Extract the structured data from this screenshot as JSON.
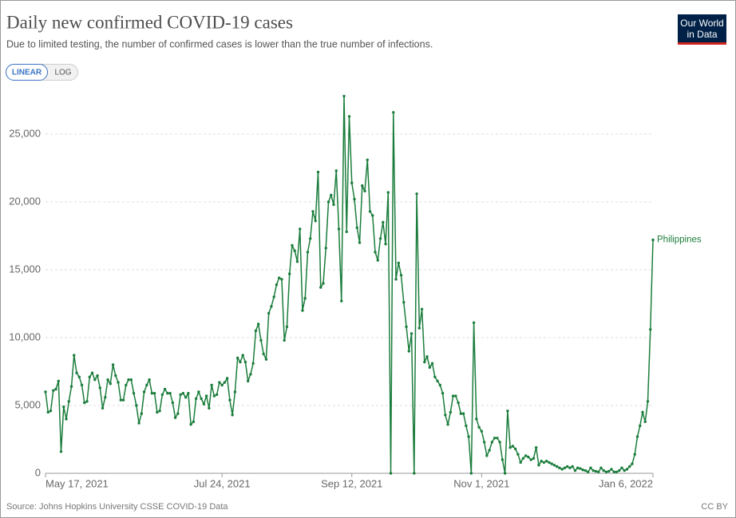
{
  "chart_data": {
    "type": "line",
    "title": "Daily new confirmed COVID-19 cases",
    "subtitle": "Due to limited testing, the number of confirmed cases is lower than the true number of infections.",
    "scale_buttons": [
      "LINEAR",
      "LOG"
    ],
    "logo": [
      "Our World",
      "in Data"
    ],
    "source": "Source: Johns Hopkins University CSSE COVID-19 Data",
    "license": "CC BY",
    "log_scale": false,
    "grid": true,
    "xlim": [
      "2021-05-17",
      "2022-01-06"
    ],
    "xticks": [
      {
        "value": "2021-05-17",
        "label": "May 17, 2021"
      },
      {
        "value": "2021-07-24",
        "label": "Jul 24, 2021"
      },
      {
        "value": "2021-09-12",
        "label": "Sep 12, 2021"
      },
      {
        "value": "2021-11-01",
        "label": "Nov 1, 2021"
      },
      {
        "value": "2022-01-06",
        "label": "Jan 6, 2022"
      }
    ],
    "ylim": [
      0,
      25000
    ],
    "yticks": [
      0,
      {
        "value": 5000,
        "label": "5,000"
      },
      {
        "value": 10000,
        "label": "10,000"
      },
      {
        "value": 15000,
        "label": "15,000"
      },
      {
        "value": 20000,
        "label": "20,000"
      },
      {
        "value": 25000,
        "label": "25,000"
      }
    ],
    "x": [
      "2021-05-17",
      "2021-05-18",
      "2021-05-19",
      "2021-05-20",
      "2021-05-21",
      "2021-05-22",
      "2021-05-23",
      "2021-05-24",
      "2021-05-25",
      "2021-05-26",
      "2021-05-27",
      "2021-05-28",
      "2021-05-29",
      "2021-05-30",
      "2021-05-31",
      "2021-06-01",
      "2021-06-02",
      "2021-06-03",
      "2021-06-04",
      "2021-06-05",
      "2021-06-06",
      "2021-06-07",
      "2021-06-08",
      "2021-06-09",
      "2021-06-10",
      "2021-06-11",
      "2021-06-12",
      "2021-06-13",
      "2021-06-14",
      "2021-06-15",
      "2021-06-16",
      "2021-06-17",
      "2021-06-18",
      "2021-06-19",
      "2021-06-20",
      "2021-06-21",
      "2021-06-22",
      "2021-06-23",
      "2021-06-24",
      "2021-06-25",
      "2021-06-26",
      "2021-06-27",
      "2021-06-28",
      "2021-06-29",
      "2021-06-30",
      "2021-07-01",
      "2021-07-02",
      "2021-07-03",
      "2021-07-04",
      "2021-07-05",
      "2021-07-06",
      "2021-07-07",
      "2021-07-08",
      "2021-07-09",
      "2021-07-10",
      "2021-07-11",
      "2021-07-12",
      "2021-07-13",
      "2021-07-14",
      "2021-07-15",
      "2021-07-16",
      "2021-07-17",
      "2021-07-18",
      "2021-07-19",
      "2021-07-20",
      "2021-07-21",
      "2021-07-22",
      "2021-07-23",
      "2021-07-24",
      "2021-07-25",
      "2021-07-26",
      "2021-07-27",
      "2021-07-28",
      "2021-07-29",
      "2021-07-30",
      "2021-07-31",
      "2021-08-01",
      "2021-08-02",
      "2021-08-03",
      "2021-08-04",
      "2021-08-05",
      "2021-08-06",
      "2021-08-07",
      "2021-08-08",
      "2021-08-09",
      "2021-08-10",
      "2021-08-11",
      "2021-08-12",
      "2021-08-13",
      "2021-08-14",
      "2021-08-15",
      "2021-08-16",
      "2021-08-17",
      "2021-08-18",
      "2021-08-19",
      "2021-08-20",
      "2021-08-21",
      "2021-08-22",
      "2021-08-23",
      "2021-08-24",
      "2021-08-25",
      "2021-08-26",
      "2021-08-27",
      "2021-08-28",
      "2021-08-29",
      "2021-08-30",
      "2021-08-31",
      "2021-09-01",
      "2021-09-02",
      "2021-09-03",
      "2021-09-04",
      "2021-09-05",
      "2021-09-06",
      "2021-09-07",
      "2021-09-08",
      "2021-09-09",
      "2021-09-10",
      "2021-09-11",
      "2021-09-12",
      "2021-09-13",
      "2021-09-14",
      "2021-09-15",
      "2021-09-16",
      "2021-09-17",
      "2021-09-18",
      "2021-09-19",
      "2021-09-20",
      "2021-09-21",
      "2021-09-22",
      "2021-09-23",
      "2021-09-24",
      "2021-09-25",
      "2021-09-26",
      "2021-09-27",
      "2021-09-28",
      "2021-09-29",
      "2021-09-30",
      "2021-10-01",
      "2021-10-02",
      "2021-10-03",
      "2021-10-04",
      "2021-10-05",
      "2021-10-06",
      "2021-10-07",
      "2021-10-08",
      "2021-10-09",
      "2021-10-10",
      "2021-10-11",
      "2021-10-12",
      "2021-10-13",
      "2021-10-14",
      "2021-10-15",
      "2021-10-16",
      "2021-10-17",
      "2021-10-18",
      "2021-10-19",
      "2021-10-20",
      "2021-10-21",
      "2021-10-22",
      "2021-10-23",
      "2021-10-24",
      "2021-10-25",
      "2021-10-26",
      "2021-10-27",
      "2021-10-28",
      "2021-10-29",
      "2021-10-30",
      "2021-10-31",
      "2021-11-01",
      "2021-11-02",
      "2021-11-03",
      "2021-11-04",
      "2021-11-05",
      "2021-11-06",
      "2021-11-07",
      "2021-11-08",
      "2021-11-09",
      "2021-11-10",
      "2021-11-11",
      "2021-11-12",
      "2021-11-13",
      "2021-11-14",
      "2021-11-15",
      "2021-11-16",
      "2021-11-17",
      "2021-11-18",
      "2021-11-19",
      "2021-11-20",
      "2021-11-21",
      "2021-11-22",
      "2021-11-23",
      "2021-11-24",
      "2021-11-25",
      "2021-11-26",
      "2021-11-27",
      "2021-11-28",
      "2021-11-29",
      "2021-11-30",
      "2021-12-01",
      "2021-12-02",
      "2021-12-03",
      "2021-12-04",
      "2021-12-05",
      "2021-12-06",
      "2021-12-07",
      "2021-12-08",
      "2021-12-09",
      "2021-12-10",
      "2021-12-11",
      "2021-12-12",
      "2021-12-13",
      "2021-12-14",
      "2021-12-15",
      "2021-12-16",
      "2021-12-17",
      "2021-12-18",
      "2021-12-19",
      "2021-12-20",
      "2021-12-21",
      "2021-12-22",
      "2021-12-23",
      "2021-12-24",
      "2021-12-25",
      "2021-12-26",
      "2021-12-27",
      "2021-12-28",
      "2021-12-29",
      "2021-12-30",
      "2021-12-31",
      "2022-01-01",
      "2022-01-02",
      "2022-01-03",
      "2022-01-04",
      "2022-01-05",
      "2022-01-06"
    ],
    "series": [
      {
        "name": "Philippines",
        "color": "#1b7d3c",
        "values": [
          6000,
          4500,
          4600,
          6100,
          6200,
          6800,
          1600,
          4900,
          4000,
          5300,
          6400,
          8700,
          7400,
          7100,
          6500,
          5200,
          5300,
          7100,
          7400,
          6900,
          7200,
          6300,
          4800,
          5600,
          6900,
          6600,
          8000,
          7200,
          6700,
          5400,
          5400,
          6500,
          6900,
          6900,
          5900,
          5000,
          3700,
          4400,
          6000,
          6500,
          6900,
          5900,
          5900,
          4500,
          4600,
          5800,
          6200,
          5900,
          5900,
          5200,
          4100,
          4400,
          5800,
          5900,
          5600,
          5900,
          3600,
          3800,
          5500,
          6000,
          5500,
          5100,
          5700,
          4800,
          6500,
          5700,
          5800,
          6700,
          6500,
          6700,
          7000,
          5400,
          4300,
          6000,
          8500,
          8200,
          8700,
          8200,
          6800,
          7300,
          8100,
          10500,
          11000,
          9800,
          8800,
          8400,
          11800,
          12300,
          13000,
          13900,
          14400,
          14300,
          9800,
          10800,
          14700,
          16800,
          16400,
          15600,
          18000,
          12000,
          12900,
          16300,
          17300,
          19300,
          18600,
          22200,
          13700,
          14000,
          16600,
          20000,
          20500,
          19800,
          22300,
          18000,
          12700,
          27800,
          17800,
          26300,
          21400,
          20200,
          18100,
          17000,
          21200,
          20800,
          23100,
          19300,
          19000,
          16300,
          15700,
          17300,
          18500,
          16900,
          20700,
          0,
          26600,
          14300,
          15500,
          14600,
          12600,
          10800,
          9000,
          10300,
          0,
          20600,
          10700,
          12100,
          8200,
          8600,
          7800,
          8100,
          7100,
          6800,
          6500,
          5900,
          4300,
          3600,
          4500,
          5700,
          5700,
          5200,
          4400,
          4400,
          3500,
          2700,
          0,
          11100,
          4000,
          3400,
          3100,
          2300,
          1300,
          1700,
          2300,
          2600,
          2600,
          2300,
          1000,
          0,
          4600,
          1900,
          2000,
          1800,
          1400,
          800,
          1100,
          1300,
          1200,
          1000,
          1100,
          1900,
          600,
          900,
          800,
          900,
          800,
          700,
          600,
          500,
          400,
          300,
          400,
          500,
          400,
          500,
          200,
          400,
          350,
          250,
          200,
          100,
          400,
          200,
          150,
          100,
          400,
          200,
          100,
          150,
          300,
          100,
          100,
          200,
          400,
          200,
          300,
          500,
          700,
          1400,
          2700,
          3500,
          4500,
          3800,
          5300,
          10600,
          17200
        ]
      }
    ]
  }
}
